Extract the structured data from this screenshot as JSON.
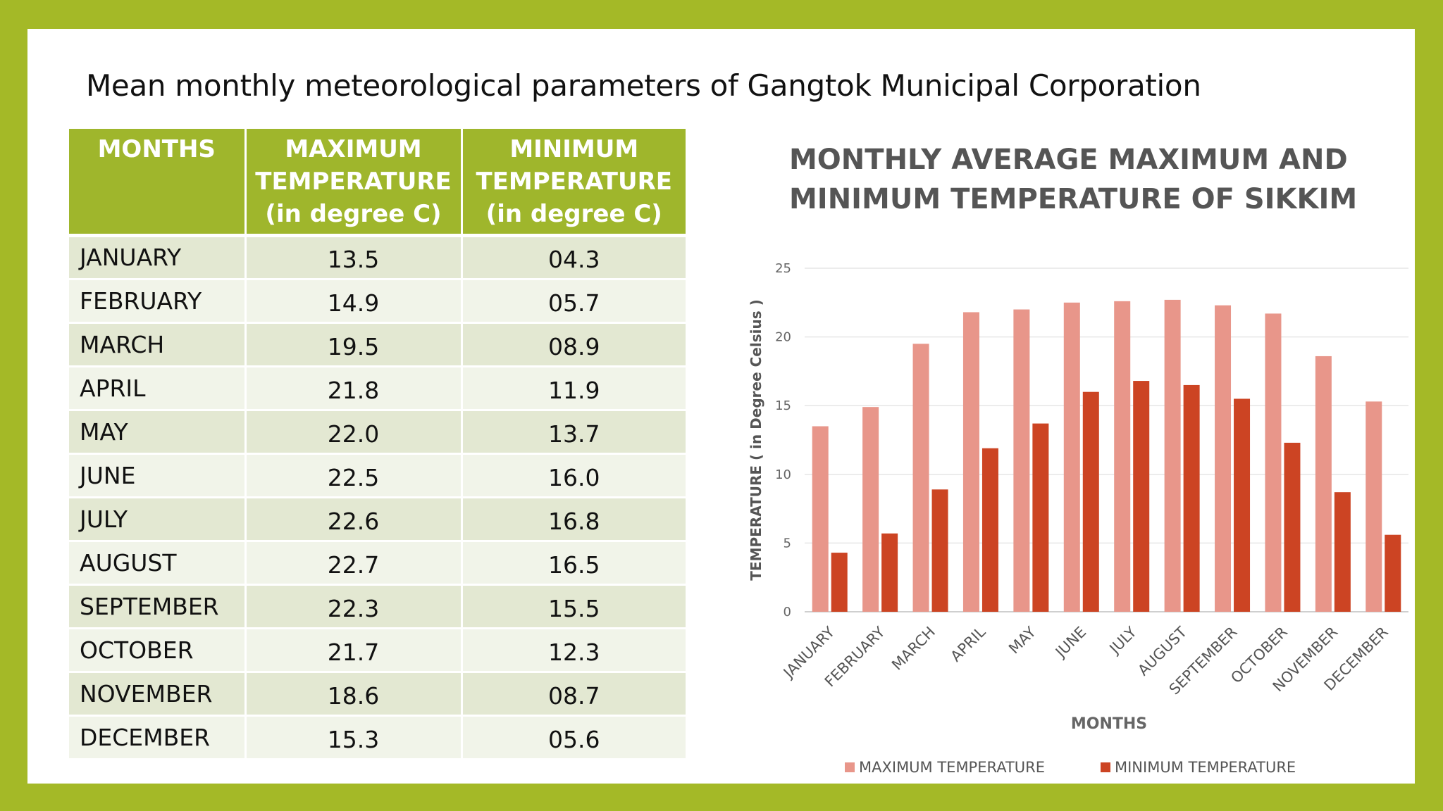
{
  "title": "Mean monthly meteorological parameters of Gangtok Municipal Corporation",
  "table": {
    "headers": [
      [
        "MONTHS"
      ],
      [
        "MAXIMUM",
        "TEMPERATURE",
        "(in degree C)"
      ],
      [
        "MINIMUM",
        "TEMPERATURE",
        "(in degree C)"
      ]
    ],
    "rows": [
      [
        "JANUARY",
        "13.5",
        "04.3"
      ],
      [
        "FEBRUARY",
        "14.9",
        "05.7"
      ],
      [
        "MARCH",
        "19.5",
        "08.9"
      ],
      [
        "APRIL",
        "21.8",
        "11.9"
      ],
      [
        "MAY",
        "22.0",
        "13.7"
      ],
      [
        "JUNE",
        "22.5",
        "16.0"
      ],
      [
        "JULY",
        "22.6",
        "16.8"
      ],
      [
        "AUGUST",
        "22.7",
        "16.5"
      ],
      [
        "SEPTEMBER",
        "22.3",
        "15.5"
      ],
      [
        "OCTOBER",
        "21.7",
        "12.3"
      ],
      [
        "NOVEMBER",
        "18.6",
        "08.7"
      ],
      [
        "DECEMBER",
        "15.3",
        "05.6"
      ]
    ]
  },
  "chart_data": {
    "type": "bar",
    "title": [
      "MONTHLY AVERAGE MAXIMUM AND",
      "MINIMUM TEMPERATURE OF SIKKIM"
    ],
    "xlabel": "MONTHS",
    "ylabel": "TEMPERATURE ( in Degree Celsius )",
    "categories": [
      "JANUARY",
      "FEBRUARY",
      "MARCH",
      "APRIL",
      "MAY",
      "JUNE",
      "JULY",
      "AUGUST",
      "SEPTEMBER",
      "OCTOBER",
      "NOVEMBER",
      "DECEMBER"
    ],
    "series": [
      {
        "name": "MAXIMUM TEMPERATURE",
        "color": "#e8968a",
        "values": [
          13.5,
          14.9,
          19.5,
          21.8,
          22.0,
          22.5,
          22.6,
          22.7,
          22.3,
          21.7,
          18.6,
          15.3
        ]
      },
      {
        "name": "MINIMUM TEMPERATURE",
        "color": "#cc4423",
        "values": [
          4.3,
          5.7,
          8.9,
          11.9,
          13.7,
          16.0,
          16.8,
          16.5,
          15.5,
          12.3,
          8.7,
          5.6
        ]
      }
    ],
    "ylim": [
      0,
      25
    ],
    "yticks": [
      0,
      5,
      10,
      15,
      20,
      25
    ],
    "grid": true,
    "legend": "bottom"
  }
}
